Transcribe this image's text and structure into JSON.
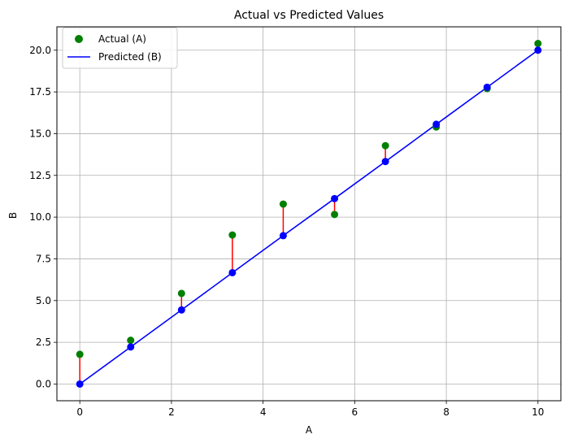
{
  "chart_data": {
    "type": "scatter",
    "title": "Actual vs Predicted Values",
    "xlabel": "A",
    "ylabel": "B",
    "xlim": [
      -0.5,
      10.5
    ],
    "ylim": [
      -1.0,
      21.4
    ],
    "xticks": [
      0,
      2,
      4,
      6,
      8,
      10
    ],
    "xtick_labels": [
      "0",
      "2",
      "4",
      "6",
      "8",
      "10"
    ],
    "yticks": [
      0,
      2.5,
      5,
      7.5,
      10,
      12.5,
      15,
      17.5,
      20
    ],
    "ytick_labels": [
      "0.0",
      "2.5",
      "5.0",
      "7.5",
      "10.0",
      "12.5",
      "15.0",
      "17.5",
      "20.0"
    ],
    "grid": true,
    "legend_position": "top-left",
    "x": [
      0,
      1.11,
      2.22,
      3.33,
      4.44,
      5.56,
      6.67,
      7.78,
      8.89,
      10
    ],
    "series": [
      {
        "name": "Actual (A)",
        "style": "markers",
        "color": "#008000",
        "values": [
          1.78,
          2.62,
          5.43,
          8.93,
          10.78,
          10.16,
          14.28,
          15.4,
          17.7,
          20.4
        ]
      },
      {
        "name": "Predicted (B)",
        "style": "line+markers",
        "color": "#0000ff",
        "values": [
          0,
          2.22,
          4.44,
          6.67,
          8.89,
          11.11,
          13.33,
          15.56,
          17.78,
          20.0
        ]
      }
    ],
    "residual_color": "#ff0000"
  }
}
